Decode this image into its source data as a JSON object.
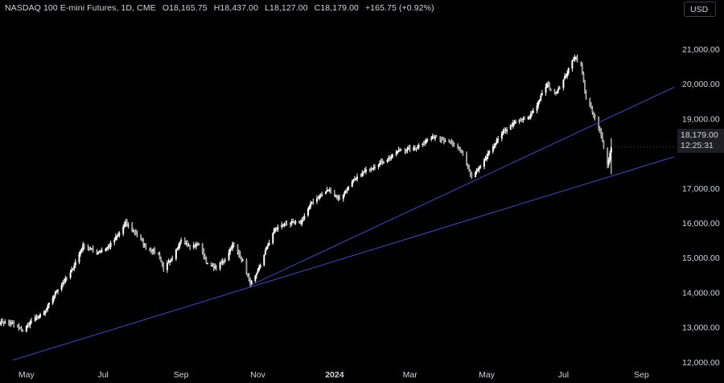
{
  "header": {
    "symbol": "NASDAQ 100 E-mini Futures, 1D, CME",
    "open": "O18,165.75",
    "high": "H18,437.00",
    "low": "L18,127.00",
    "close": "C18,179.00",
    "change": "+165.75 (+0.92%)"
  },
  "currency_button": "USD",
  "price_tag": {
    "price": "18,179.00",
    "countdown": "12:25:31"
  },
  "colors": {
    "background": "#000000",
    "candle": "#ffffff",
    "trendline": "#3b3f9e",
    "axis_text": "#d1d4dc"
  },
  "chart_data": {
    "type": "candlestick",
    "y_axis": {
      "ticks": [
        "21,000.00",
        "20,000.00",
        "19,000.00",
        "17,000.00",
        "16,000.00",
        "15,000.00",
        "14,000.00",
        "13,000.00",
        "12,000.00"
      ],
      "tick_values": [
        21000,
        20000,
        19000,
        17000,
        16000,
        15000,
        14000,
        13000,
        12000
      ],
      "range": [
        11950,
        21900
      ]
    },
    "x_axis": {
      "ticks": [
        "May",
        "Jul",
        "Sep",
        "Nov",
        "2024",
        "Mar",
        "May",
        "Jul",
        "Sep"
      ],
      "tick_dates": [
        "2023-05-01",
        "2023-07-01",
        "2023-09-01",
        "2023-11-01",
        "2024-01-01",
        "2024-03-01",
        "2024-05-01",
        "2024-07-01",
        "2024-09-01"
      ],
      "range": [
        "2023-04-10",
        "2024-09-27"
      ]
    },
    "series": [
      {
        "values": [
          [
            "2023-04-10",
            13150
          ],
          [
            "2023-04-20",
            13100
          ],
          [
            "2023-04-28",
            12900
          ],
          [
            "2023-05-05",
            13180
          ],
          [
            "2023-05-15",
            13400
          ],
          [
            "2023-05-25",
            14050
          ],
          [
            "2023-06-05",
            14550
          ],
          [
            "2023-06-15",
            15350
          ],
          [
            "2023-06-26",
            15150
          ],
          [
            "2023-07-05",
            15300
          ],
          [
            "2023-07-14",
            15700
          ],
          [
            "2023-07-19",
            16000
          ],
          [
            "2023-07-27",
            15700
          ],
          [
            "2023-08-04",
            15300
          ],
          [
            "2023-08-14",
            15100
          ],
          [
            "2023-08-18",
            14700
          ],
          [
            "2023-08-25",
            14950
          ],
          [
            "2023-09-01",
            15550
          ],
          [
            "2023-09-08",
            15300
          ],
          [
            "2023-09-15",
            15400
          ],
          [
            "2023-09-22",
            14800
          ],
          [
            "2023-09-29",
            14700
          ],
          [
            "2023-10-06",
            14950
          ],
          [
            "2023-10-12",
            15400
          ],
          [
            "2023-10-20",
            14900
          ],
          [
            "2023-10-26",
            14250
          ],
          [
            "2023-10-31",
            14500
          ],
          [
            "2023-11-06",
            15100
          ],
          [
            "2023-11-14",
            15800
          ],
          [
            "2023-11-24",
            16000
          ],
          [
            "2023-12-05",
            16000
          ],
          [
            "2023-12-14",
            16600
          ],
          [
            "2023-12-27",
            16950
          ],
          [
            "2024-01-05",
            16700
          ],
          [
            "2024-01-16",
            17200
          ],
          [
            "2024-01-26",
            17500
          ],
          [
            "2024-02-05",
            17700
          ],
          [
            "2024-02-15",
            17900
          ],
          [
            "2024-02-22",
            18100
          ],
          [
            "2024-03-05",
            18150
          ],
          [
            "2024-03-15",
            18400
          ],
          [
            "2024-03-22",
            18500
          ],
          [
            "2024-04-02",
            18300
          ],
          [
            "2024-04-12",
            18000
          ],
          [
            "2024-04-19",
            17300
          ],
          [
            "2024-04-26",
            17600
          ],
          [
            "2024-05-06",
            18200
          ],
          [
            "2024-05-15",
            18650
          ],
          [
            "2024-05-24",
            18900
          ],
          [
            "2024-06-03",
            19000
          ],
          [
            "2024-06-10",
            19400
          ],
          [
            "2024-06-18",
            20000
          ],
          [
            "2024-06-24",
            19700
          ],
          [
            "2024-07-01",
            20100
          ],
          [
            "2024-07-10",
            20800
          ],
          [
            "2024-07-15",
            20500
          ],
          [
            "2024-07-19",
            19600
          ],
          [
            "2024-07-26",
            19000
          ],
          [
            "2024-08-01",
            18400
          ],
          [
            "2024-08-05",
            17650
          ],
          [
            "2024-08-08",
            18179
          ]
        ]
      }
    ],
    "annotations": [
      {
        "type": "trendline",
        "from": [
          "2023-04-20",
          12050
        ],
        "to": [
          "2024-09-27",
          17900
        ]
      },
      {
        "type": "trendline",
        "from": [
          "2023-10-26",
          14200
        ],
        "to": [
          "2024-09-27",
          19900
        ]
      }
    ],
    "last_value": 18179,
    "grid": false,
    "legend": "none"
  }
}
